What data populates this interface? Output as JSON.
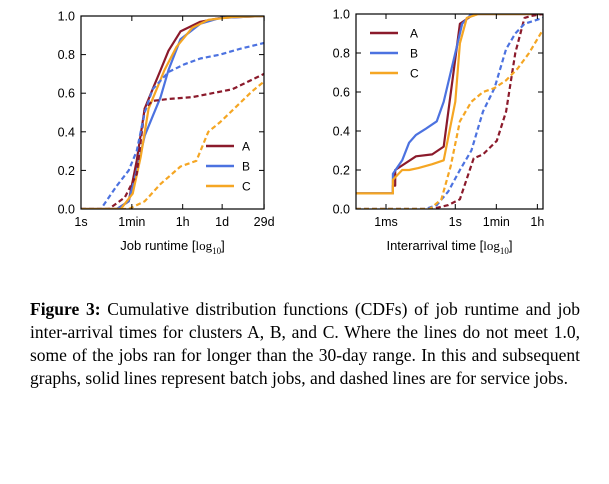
{
  "chart_data": [
    {
      "type": "line",
      "xlabel": "Job runtime [log10]",
      "ylim": [
        0,
        1
      ],
      "xscale": "log",
      "xticks": [
        "1s",
        "1min",
        "1h",
        "1d",
        "29d"
      ],
      "yticks": [
        "0.0",
        "0.2",
        "0.4",
        "0.6",
        "0.8",
        "1.0"
      ],
      "legend": {
        "position": "bottom-right",
        "entries": [
          "A",
          "B",
          "C"
        ]
      },
      "series": [
        {
          "name": "A",
          "style": "solid",
          "color": "#8b1a2b",
          "x": [
            0.0,
            0.9,
            1.2,
            1.4,
            1.6,
            1.8,
            2.0,
            2.2,
            2.5,
            3.0,
            3.5,
            4.0,
            4.6
          ],
          "y": [
            0.0,
            0.0,
            0.04,
            0.25,
            0.52,
            0.62,
            0.72,
            0.82,
            0.92,
            0.97,
            0.99,
            0.995,
            1.0
          ]
        },
        {
          "name": "B",
          "style": "solid",
          "color": "#4c72e0",
          "x": [
            0.0,
            0.9,
            1.2,
            1.4,
            1.6,
            1.8,
            2.0,
            2.2,
            2.5,
            3.0,
            3.5,
            4.0,
            4.6
          ],
          "y": [
            0.0,
            0.0,
            0.04,
            0.2,
            0.38,
            0.48,
            0.58,
            0.72,
            0.88,
            0.96,
            0.99,
            0.995,
            1.0
          ]
        },
        {
          "name": "C",
          "style": "solid",
          "color": "#f5a623",
          "x": [
            0.0,
            1.0,
            1.3,
            1.5,
            1.7,
            1.9,
            2.1,
            2.4,
            2.8,
            3.2,
            3.8,
            4.6
          ],
          "y": [
            0.0,
            0.0,
            0.08,
            0.27,
            0.52,
            0.62,
            0.72,
            0.84,
            0.94,
            0.98,
            0.995,
            1.0
          ]
        },
        {
          "name": "A",
          "style": "dashed",
          "color": "#8b1a2b",
          "x": [
            0.0,
            0.7,
            1.1,
            1.4,
            1.6,
            1.8,
            2.2,
            2.8,
            3.3,
            3.8,
            4.3,
            4.6
          ],
          "y": [
            0.0,
            0.0,
            0.06,
            0.18,
            0.52,
            0.56,
            0.57,
            0.58,
            0.6,
            0.62,
            0.67,
            0.7
          ]
        },
        {
          "name": "B",
          "style": "dashed",
          "color": "#4c72e0",
          "x": [
            0.0,
            0.5,
            0.9,
            1.2,
            1.4,
            1.6,
            1.8,
            2.2,
            2.6,
            3.0,
            3.5,
            4.0,
            4.6
          ],
          "y": [
            0.0,
            0.0,
            0.12,
            0.2,
            0.3,
            0.5,
            0.62,
            0.71,
            0.75,
            0.78,
            0.8,
            0.83,
            0.86
          ]
        },
        {
          "name": "C",
          "style": "dashed",
          "color": "#f5a623",
          "x": [
            0.0,
            1.2,
            1.6,
            2.0,
            2.5,
            2.9,
            3.2,
            3.5,
            3.9,
            4.3,
            4.6
          ],
          "y": [
            0.0,
            0.0,
            0.04,
            0.13,
            0.22,
            0.25,
            0.4,
            0.45,
            0.53,
            0.61,
            0.66
          ]
        }
      ]
    },
    {
      "type": "line",
      "xlabel": "Interarrival time [log10]",
      "ylim": [
        0,
        1
      ],
      "xscale": "log",
      "xticks": [
        "1ms",
        "1s",
        "1min",
        "1h"
      ],
      "yticks": [
        "0.0",
        "0.2",
        "0.4",
        "0.6",
        "0.8",
        "1.0"
      ],
      "legend": {
        "position": "top-left",
        "entries": [
          "A",
          "B",
          "C"
        ]
      },
      "series": [
        {
          "name": "A",
          "style": "solid",
          "color": "#8b1a2b",
          "x": [
            -3.5,
            -1.9,
            -1.9,
            -1.8,
            -1.8,
            -0.9,
            -0.2,
            0.3,
            1.0,
            1.5,
            1.8,
            3.0,
            4.6
          ],
          "y": [
            0.08,
            0.08,
            0.12,
            0.12,
            0.2,
            0.27,
            0.28,
            0.32,
            0.95,
            0.99,
            1.0,
            1.0,
            1.0
          ]
        },
        {
          "name": "B",
          "style": "solid",
          "color": "#4c72e0",
          "x": [
            -3.5,
            -1.9,
            -1.9,
            -1.5,
            -1.2,
            -0.9,
            -0.5,
            0.0,
            0.3,
            0.8,
            1.1,
            1.5,
            3.0,
            4.6
          ],
          "y": [
            0.08,
            0.08,
            0.18,
            0.25,
            0.34,
            0.38,
            0.41,
            0.45,
            0.55,
            0.8,
            0.95,
            1.0,
            1.0,
            1.0
          ]
        },
        {
          "name": "C",
          "style": "solid",
          "color": "#f5a623",
          "x": [
            -3.5,
            -1.9,
            -1.9,
            -1.5,
            -1.2,
            -0.8,
            -0.2,
            0.3,
            0.8,
            1.0,
            1.3,
            1.8,
            3.0,
            4.6
          ],
          "y": [
            0.08,
            0.08,
            0.15,
            0.2,
            0.2,
            0.21,
            0.23,
            0.25,
            0.55,
            0.85,
            0.98,
            1.0,
            1.0,
            1.0
          ]
        },
        {
          "name": "A",
          "style": "dashed",
          "color": "#8b1a2b",
          "x": [
            -3.5,
            -0.2,
            0.5,
            1.0,
            1.6,
            2.0,
            2.6,
            3.0,
            3.4,
            3.8,
            4.1,
            4.6
          ],
          "y": [
            0.0,
            0.0,
            0.02,
            0.05,
            0.26,
            0.28,
            0.35,
            0.5,
            0.8,
            0.98,
            0.99,
            1.0
          ]
        },
        {
          "name": "B",
          "style": "dashed",
          "color": "#4c72e0",
          "x": [
            -3.5,
            -0.5,
            0.0,
            0.5,
            1.0,
            1.5,
            2.0,
            2.5,
            3.0,
            3.4,
            3.8,
            4.6
          ],
          "y": [
            0.0,
            0.0,
            0.02,
            0.09,
            0.2,
            0.3,
            0.5,
            0.62,
            0.82,
            0.9,
            0.95,
            0.98
          ]
        },
        {
          "name": "C",
          "style": "dashed",
          "color": "#f5a623",
          "x": [
            -3.5,
            -0.3,
            0.2,
            0.6,
            1.0,
            1.5,
            2.0,
            2.5,
            3.0,
            3.5,
            4.0,
            4.6
          ],
          "y": [
            0.0,
            0.0,
            0.05,
            0.22,
            0.45,
            0.55,
            0.6,
            0.62,
            0.66,
            0.72,
            0.8,
            0.92
          ]
        }
      ]
    }
  ],
  "caption": {
    "label": "Figure 3:",
    "text": "Cumulative distribution functions (CDFs) of job runtime and job inter-arrival times for clusters A, B, and C. Where the lines do not meet 1.0, some of the jobs ran for longer than the 30-day range. In this and subsequent graphs, solid lines represent batch jobs, and dashed lines are for service jobs."
  }
}
